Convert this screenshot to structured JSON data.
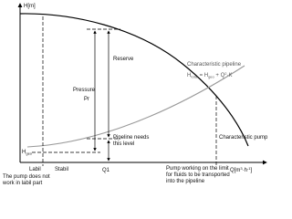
{
  "axes": {
    "y_label": "H[m]",
    "x_label": [
      "Q[m",
      "3",
      "·h",
      "-1",
      "]"
    ]
  },
  "curves": {
    "pipeline": "Characteristic pipeline",
    "pipeline_formula": [
      "H",
      "total",
      " = H",
      "geo",
      " + Q",
      "2",
      "·K"
    ],
    "pump": "Characteristic pump"
  },
  "labels": {
    "pressure": "Pressure",
    "pr": "Pr",
    "reserve": "Reserve",
    "pipeline_needs": [
      "Pipeline needs",
      "this level"
    ],
    "h_geo": [
      "H",
      "geo"
    ],
    "labil": "Labil",
    "stabil": "Stabil",
    "q1": "Q1",
    "labil_note": [
      "The pump does not",
      "work in labil part"
    ],
    "limit_note": [
      "Pump working on the limit",
      "for fluids to be transported",
      "into the pipeline"
    ]
  }
}
